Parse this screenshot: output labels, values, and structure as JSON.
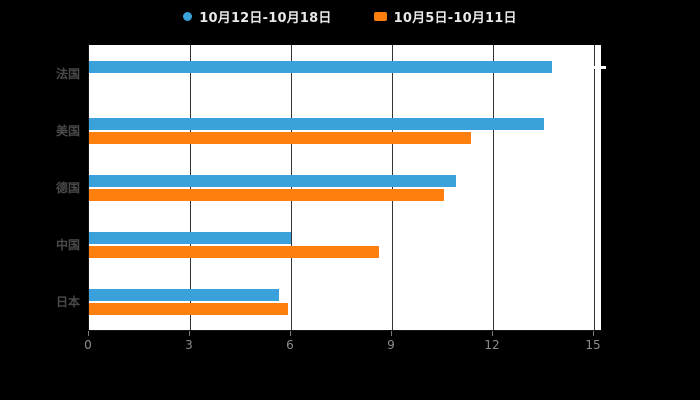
{
  "canvas": {
    "background": "#000000",
    "plot_background": "#ffffff",
    "gridline_color": "#333333"
  },
  "legend": {
    "items": [
      {
        "label": "10月12日-10月18日",
        "color": "#3BA1DB",
        "marker": "circle"
      },
      {
        "label": "10月5日-10月11日",
        "color": "#FF7F0E",
        "marker": "rect"
      }
    ]
  },
  "chart_data": {
    "type": "bar",
    "orientation": "horizontal",
    "title": "",
    "categories": [
      "法国",
      "美国",
      "德国",
      "中国",
      "日本"
    ],
    "series": [
      {
        "name": "10月12日-10月18日",
        "color": "#3BA1DB",
        "values": [
          13.75,
          13.5,
          10.9,
          6.0,
          5.65
        ]
      },
      {
        "name": "10月5日-10月11日",
        "color": "#FF7F0E",
        "values": [
          null,
          11.35,
          10.55,
          8.6,
          5.9
        ]
      }
    ],
    "x_axis": {
      "ticks": [
        0,
        3,
        6,
        9,
        12,
        15
      ],
      "min": 0,
      "max": 15.2,
      "label_color": "#8d8d8d"
    },
    "y_axis": {
      "label_color": "#4a4a4a"
    },
    "grid": true,
    "legend_position": "top-center"
  }
}
